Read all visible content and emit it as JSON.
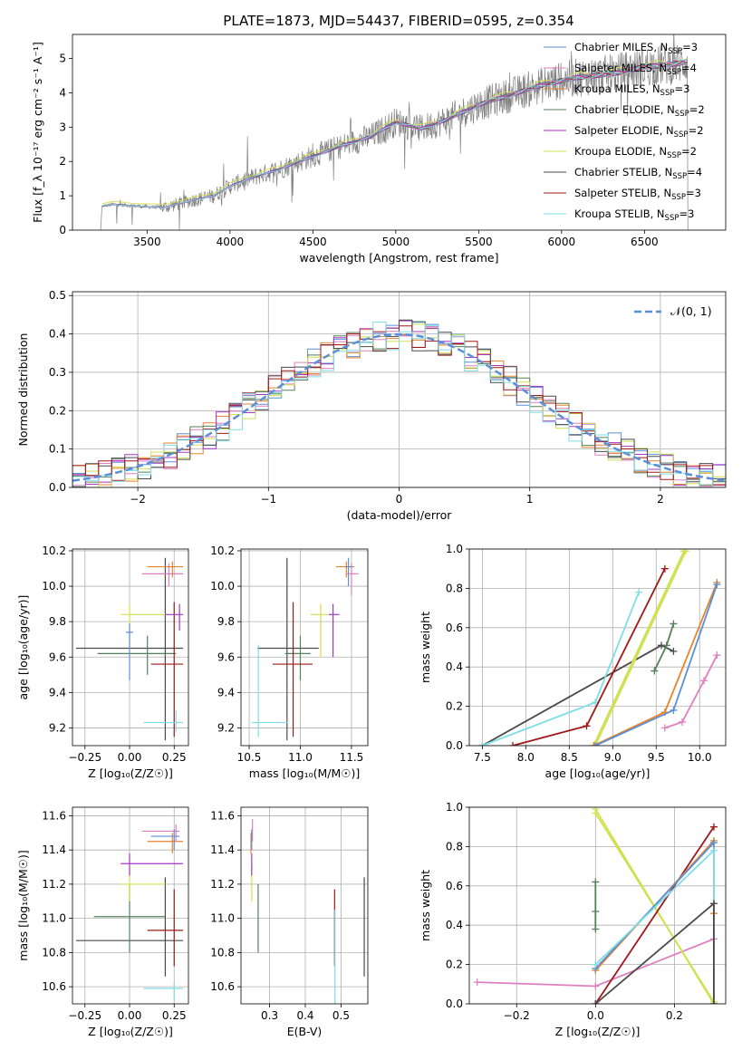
{
  "figure": {
    "title": "PLATE=1873, MJD=54437, FIBERID=0595, z=0.354"
  },
  "colors": {
    "chabrier_miles": "#5b8fd9",
    "salpeter_miles": "#e07fbf",
    "kroupa_miles": "#e8832a",
    "chabrier_elodie": "#56805a",
    "salpeter_elodie": "#a836c8",
    "kroupa_elodie": "#d0e050",
    "chabrier_stelib": "#4a4a4a",
    "salpeter_stelib": "#a01818",
    "kroupa_stelib": "#7fdde5",
    "data": "#808080",
    "normal": "#5b8fd9"
  },
  "chart_data": [
    {
      "id": "spectrum",
      "type": "line",
      "xlabel": "wavelength [Angstrom, rest frame]",
      "ylabel": "Flux [f_λ 10⁻¹⁷ erg cm⁻² s⁻¹ A⁻¹]",
      "xlim": [
        3050,
        6990
      ],
      "ylim": [
        0,
        5.7
      ],
      "xticks": [
        3500,
        4000,
        4500,
        5000,
        5500,
        6000,
        6500
      ],
      "yticks": [
        0,
        1,
        2,
        3,
        4,
        5
      ],
      "grid": false,
      "legend_position": "top-right",
      "legend": [
        "Chabrier MILES, N_SSP=3",
        "Salpeter MILES, N_SSP=4",
        "Kroupa MILES, N_SSP=3",
        "Chabrier ELODIE, N_SSP=2",
        "Salpeter ELODIE, N_SSP=2",
        "Kroupa ELODIE, N_SSP=2",
        "Chabrier STELIB, N_SSP=4",
        "Salpeter STELIB, N_SSP=3",
        "Kroupa STELIB, N_SSP=3"
      ],
      "continuum": {
        "x": [
          3230,
          3300,
          3500,
          3600,
          3800,
          3900,
          4000,
          4100,
          4300,
          4500,
          4700,
          4850,
          5000,
          5150,
          5300,
          5500,
          5700,
          5900,
          6100,
          6300,
          6500,
          6700,
          6760
        ],
        "y": [
          0.7,
          0.75,
          0.68,
          0.66,
          0.9,
          1.0,
          1.28,
          1.48,
          1.78,
          2.15,
          2.5,
          2.72,
          3.15,
          2.95,
          3.2,
          3.65,
          3.95,
          4.25,
          4.45,
          4.55,
          4.75,
          4.85,
          4.9
        ]
      }
    },
    {
      "id": "residuals",
      "type": "histogram",
      "xlabel": "(data-model)/error",
      "ylabel": "Normed distribution",
      "xlim": [
        -2.5,
        2.5
      ],
      "ylim": [
        0,
        0.51
      ],
      "xticks": [
        -2,
        -1,
        0,
        1,
        2
      ],
      "yticks": [
        0,
        0.1,
        0.2,
        0.3,
        0.4,
        0.5
      ],
      "grid": true,
      "legend_position": "top-right",
      "legend": [
        "𝒩(0, 1)"
      ],
      "normal_mean": 0,
      "normal_sd": 1
    },
    {
      "id": "age_vs_Z",
      "type": "errorbar",
      "xlabel": "Z [log₁₀(Z/Z☉)]",
      "ylabel": "age  [log₁₀(age/yr)]",
      "xlim": [
        -0.32,
        0.33
      ],
      "ylim": [
        9.1,
        10.21
      ],
      "xticks": [
        -0.25,
        0.0,
        0.25
      ],
      "xtick_labels": [
        "−0.25",
        "0.00",
        "0.25"
      ],
      "yticks": [
        9.2,
        9.4,
        9.6,
        9.8,
        10.0,
        10.2
      ],
      "grid": true,
      "points": [
        {
          "m": "chabrier_stelib",
          "x": 0.2,
          "y": 9.65,
          "xe": [
            -0.3,
            0.3
          ],
          "ye": [
            9.13,
            10.16
          ]
        },
        {
          "m": "chabrier_elodie",
          "x": 0.1,
          "y": 9.62,
          "xe": [
            -0.18,
            0.26
          ],
          "ye": [
            9.5,
            9.72
          ]
        },
        {
          "m": "salpeter_stelib",
          "x": 0.25,
          "y": 9.56,
          "xe": [
            0.12,
            0.3
          ],
          "ye": [
            9.15,
            9.91
          ]
        },
        {
          "m": "kroupa_elodie",
          "x": 0.0,
          "y": 9.84,
          "xe": [
            -0.05,
            0.2
          ],
          "ye": [
            9.65,
            9.9
          ]
        },
        {
          "m": "salpeter_elodie",
          "x": 0.28,
          "y": 9.84,
          "xe": [
            0.2,
            0.3
          ],
          "ye": [
            9.75,
            9.9
          ]
        },
        {
          "m": "chabrier_miles",
          "x": 0.0,
          "y": 9.74,
          "xe": [
            -0.02,
            0.02
          ],
          "ye": [
            9.47,
            9.79
          ]
        },
        {
          "m": "kroupa_stelib",
          "x": 0.26,
          "y": 9.23,
          "xe": [
            0.08,
            0.3
          ],
          "ye": [
            9.18,
            9.3
          ]
        },
        {
          "m": "salpeter_miles",
          "x": 0.22,
          "y": 10.07,
          "xe": [
            0.07,
            0.3
          ],
          "ye": [
            10.0,
            10.13
          ]
        },
        {
          "m": "kroupa_miles",
          "x": 0.24,
          "y": 10.11,
          "xe": [
            0.1,
            0.3
          ],
          "ye": [
            10.05,
            10.14
          ]
        }
      ]
    },
    {
      "id": "age_vs_mass",
      "type": "errorbar",
      "xlabel": "mass [log₁₀(M/M☉)]",
      "ylabel": "",
      "xlim": [
        10.42,
        11.66
      ],
      "ylim": [
        9.1,
        10.21
      ],
      "xticks": [
        10.5,
        11.0,
        11.5
      ],
      "xtick_labels": [
        "10.5",
        "11.0",
        "11.5"
      ],
      "yticks": [
        9.2,
        9.4,
        9.6,
        9.8,
        10.0,
        10.2
      ],
      "grid": true,
      "points": [
        {
          "m": "chabrier_stelib",
          "x": 10.87,
          "y": 9.65,
          "xe": [
            10.58,
            11.18
          ],
          "ye": [
            9.13,
            10.16
          ]
        },
        {
          "m": "chabrier_elodie",
          "x": 11.0,
          "y": 9.62,
          "xe": [
            10.85,
            11.1
          ],
          "ye": [
            9.47,
            9.72
          ]
        },
        {
          "m": "salpeter_stelib",
          "x": 10.93,
          "y": 9.56,
          "xe": [
            10.73,
            11.12
          ],
          "ye": [
            9.15,
            9.91
          ]
        },
        {
          "m": "kroupa_elodie",
          "x": 11.2,
          "y": 9.84,
          "xe": [
            11.1,
            11.3
          ],
          "ye": [
            9.6,
            9.9
          ]
        },
        {
          "m": "salpeter_elodie",
          "x": 11.32,
          "y": 9.84,
          "xe": [
            11.28,
            11.38
          ],
          "ye": [
            9.6,
            9.9
          ]
        },
        {
          "m": "kroupa_stelib",
          "x": 10.59,
          "y": 9.23,
          "xe": [
            10.52,
            10.88
          ],
          "ye": [
            9.15,
            9.67
          ]
        },
        {
          "m": "kroupa_miles",
          "x": 11.45,
          "y": 10.11,
          "xe": [
            11.35,
            11.53
          ],
          "ye": [
            10.05,
            10.14
          ]
        },
        {
          "m": "salpeter_miles",
          "x": 11.5,
          "y": 10.07,
          "xe": [
            11.45,
            11.57
          ],
          "ye": [
            9.95,
            10.13
          ]
        },
        {
          "m": "chabrier_miles",
          "x": 11.47,
          "y": 10.11,
          "xe": [
            11.44,
            11.51
          ],
          "ye": [
            10.0,
            10.16
          ]
        }
      ]
    },
    {
      "id": "weight_vs_age",
      "type": "line",
      "xlabel": "age  [log₁₀(age/yr)]",
      "ylabel": "mass weight",
      "xlim": [
        7.35,
        10.3
      ],
      "ylim": [
        0,
        1.0
      ],
      "xticks": [
        7.5,
        8.0,
        8.5,
        9.0,
        9.5,
        10.0
      ],
      "xtick_labels": [
        "7.5",
        "8.0",
        "8.5",
        "9.0",
        "9.5",
        "10.0"
      ],
      "yticks": [
        0.0,
        0.2,
        0.4,
        0.6,
        0.8,
        1.0
      ],
      "grid": true,
      "series": [
        {
          "m": "chabrier_stelib",
          "x": [
            7.5,
            9.56,
            9.7
          ],
          "y": [
            0.0,
            0.51,
            0.48
          ]
        },
        {
          "m": "kroupa_stelib",
          "x": [
            7.5,
            8.8,
            9.3
          ],
          "y": [
            0.0,
            0.22,
            0.78
          ]
        },
        {
          "m": "salpeter_stelib",
          "x": [
            7.85,
            8.7,
            9.6
          ],
          "y": [
            0.0,
            0.1,
            0.9
          ]
        },
        {
          "m": "kroupa_elodie",
          "x": [
            8.78,
            9.82
          ],
          "y": [
            0.0,
            0.99
          ]
        },
        {
          "m": "kroupa_elodie",
          "x": [
            8.8,
            9.84
          ],
          "y": [
            0.0,
            0.99
          ]
        },
        {
          "m": "chabrier_elodie",
          "x": [
            9.48,
            9.62,
            9.7
          ],
          "y": [
            0.38,
            0.51,
            0.62
          ]
        },
        {
          "m": "kroupa_miles",
          "x": [
            8.78,
            9.6,
            10.2
          ],
          "y": [
            0.0,
            0.17,
            0.83
          ]
        },
        {
          "m": "chabrier_miles",
          "x": [
            8.8,
            9.7,
            10.2
          ],
          "y": [
            0.0,
            0.18,
            0.82
          ]
        },
        {
          "m": "salpeter_miles",
          "x": [
            9.6,
            9.8,
            10.05,
            10.2
          ],
          "y": [
            0.09,
            0.12,
            0.33,
            0.46
          ]
        }
      ]
    },
    {
      "id": "mass_vs_Z",
      "type": "errorbar",
      "xlabel": "Z [log₁₀(Z/Z☉)]",
      "ylabel": "mass [log₁₀(M/M☉)]",
      "xlim": [
        -0.32,
        0.33
      ],
      "ylim": [
        10.5,
        11.65
      ],
      "xticks": [
        -0.25,
        0.0,
        0.25
      ],
      "xtick_labels": [
        "−0.25",
        "0.00",
        "0.25"
      ],
      "yticks": [
        10.6,
        10.8,
        11.0,
        11.2,
        11.4,
        11.6
      ],
      "grid": true,
      "points": [
        {
          "m": "chabrier_stelib",
          "x": 0.2,
          "y": 10.87,
          "xe": [
            -0.3,
            0.3
          ],
          "ye": [
            10.66,
            11.24
          ]
        },
        {
          "m": "chabrier_elodie",
          "x": 0.0,
          "y": 11.01,
          "xe": [
            -0.2,
            0.2
          ],
          "ye": [
            10.8,
            11.2
          ]
        },
        {
          "m": "salpeter_stelib",
          "x": 0.25,
          "y": 10.93,
          "xe": [
            0.1,
            0.3
          ],
          "ye": [
            10.72,
            11.17
          ]
        },
        {
          "m": "kroupa_elodie",
          "x": 0.0,
          "y": 11.2,
          "xe": [
            -0.05,
            0.2
          ],
          "ye": [
            11.1,
            11.3
          ]
        },
        {
          "m": "salpeter_elodie",
          "x": 0.0,
          "y": 11.32,
          "xe": [
            -0.05,
            0.3
          ],
          "ye": [
            11.25,
            11.38
          ]
        },
        {
          "m": "kroupa_stelib",
          "x": 0.25,
          "y": 10.59,
          "xe": [
            0.08,
            0.3
          ],
          "ye": [
            10.52,
            10.62
          ]
        },
        {
          "m": "kroupa_miles",
          "x": 0.24,
          "y": 11.45,
          "xe": [
            0.1,
            0.3
          ],
          "ye": [
            11.38,
            11.5
          ]
        },
        {
          "m": "salpeter_miles",
          "x": 0.26,
          "y": 11.51,
          "xe": [
            0.07,
            0.28
          ],
          "ye": [
            11.45,
            11.55
          ]
        },
        {
          "m": "chabrier_miles",
          "x": 0.25,
          "y": 11.48,
          "xe": [
            0.12,
            0.28
          ],
          "ye": [
            11.4,
            11.52
          ]
        }
      ]
    },
    {
      "id": "mass_vs_ebv",
      "type": "errorbar",
      "xlabel": "E(B-V)",
      "ylabel": "",
      "xlim": [
        0.22,
        0.575
      ],
      "ylim": [
        10.5,
        11.65
      ],
      "xticks": [
        0.3,
        0.4,
        0.5
      ],
      "xtick_labels": [
        "0.3",
        "0.4",
        "0.5"
      ],
      "yticks": [
        10.6,
        10.8,
        11.0,
        11.2,
        11.4,
        11.6
      ],
      "grid": true,
      "points": [
        {
          "m": "chabrier_stelib",
          "x": 0.565,
          "y": 10.87,
          "xe": [
            0.565,
            0.565
          ],
          "ye": [
            10.66,
            11.24
          ]
        },
        {
          "m": "salpeter_stelib",
          "x": 0.482,
          "y": 10.93,
          "xe": [
            0.482,
            0.482
          ],
          "ye": [
            10.72,
            11.17
          ]
        },
        {
          "m": "kroupa_stelib",
          "x": 0.483,
          "y": 10.59,
          "xe": [
            0.483,
            0.483
          ],
          "ye": [
            10.48,
            11.05
          ]
        },
        {
          "m": "chabrier_elodie",
          "x": 0.268,
          "y": 11.01,
          "xe": [
            0.268,
            0.268
          ],
          "ye": [
            10.8,
            11.2
          ]
        },
        {
          "m": "kroupa_elodie",
          "x": 0.25,
          "y": 11.2,
          "xe": [
            0.25,
            0.25
          ],
          "ye": [
            11.1,
            11.3
          ]
        },
        {
          "m": "salpeter_elodie",
          "x": 0.25,
          "y": 11.32,
          "xe": [
            0.25,
            0.25
          ],
          "ye": [
            11.25,
            11.38
          ]
        },
        {
          "m": "kroupa_miles",
          "x": 0.248,
          "y": 11.45,
          "xe": [
            0.248,
            0.248
          ],
          "ye": [
            11.38,
            11.5
          ]
        },
        {
          "m": "salpeter_miles",
          "x": 0.252,
          "y": 11.51,
          "xe": [
            0.252,
            0.252
          ],
          "ye": [
            11.45,
            11.58
          ]
        },
        {
          "m": "chabrier_miles",
          "x": 0.25,
          "y": 11.48,
          "xe": [
            0.25,
            0.25
          ],
          "ye": [
            11.4,
            11.52
          ]
        }
      ]
    },
    {
      "id": "weight_vs_Z",
      "type": "line",
      "xlabel": "Z [log₁₀(Z/Z☉)]",
      "ylabel": "mass weight",
      "xlim": [
        -0.32,
        0.33
      ],
      "ylim": [
        0,
        1.0
      ],
      "xticks": [
        -0.2,
        0.0,
        0.2
      ],
      "xtick_labels": [
        "−0.2",
        "0.0",
        "0.2"
      ],
      "yticks": [
        0.0,
        0.2,
        0.4,
        0.6,
        0.8,
        1.0
      ],
      "grid": true,
      "series": [
        {
          "m": "salpeter_miles",
          "x": [
            -0.3,
            0.0,
            0.3
          ],
          "y": [
            0.11,
            0.09,
            0.33
          ]
        },
        {
          "m": "kroupa_elodie",
          "x": [
            0.0,
            0.3
          ],
          "y": [
            0.99,
            0.0
          ]
        },
        {
          "m": "kroupa_elodie",
          "x": [
            0.0,
            0.3
          ],
          "y": [
            0.97,
            0.01
          ]
        },
        {
          "m": "chabrier_elodie",
          "x": [
            0.0,
            0.0,
            0.0
          ],
          "y": [
            0.38,
            0.47,
            0.62
          ]
        },
        {
          "m": "salpeter_stelib",
          "x": [
            0.0,
            0.3
          ],
          "y": [
            0.0,
            0.9
          ]
        },
        {
          "m": "kroupa_miles",
          "x": [
            0.0,
            0.3,
            0.3
          ],
          "y": [
            0.17,
            0.83,
            0.46
          ]
        },
        {
          "m": "chabrier_miles",
          "x": [
            0.0,
            0.3,
            0.3
          ],
          "y": [
            0.18,
            0.82,
            0.0
          ]
        },
        {
          "m": "kroupa_stelib",
          "x": [
            0.0,
            0.3,
            0.3
          ],
          "y": [
            0.2,
            0.78,
            0.0
          ]
        },
        {
          "m": "chabrier_stelib",
          "x": [
            0.0,
            0.3,
            0.3
          ],
          "y": [
            0.0,
            0.51,
            0.0
          ]
        }
      ]
    }
  ]
}
